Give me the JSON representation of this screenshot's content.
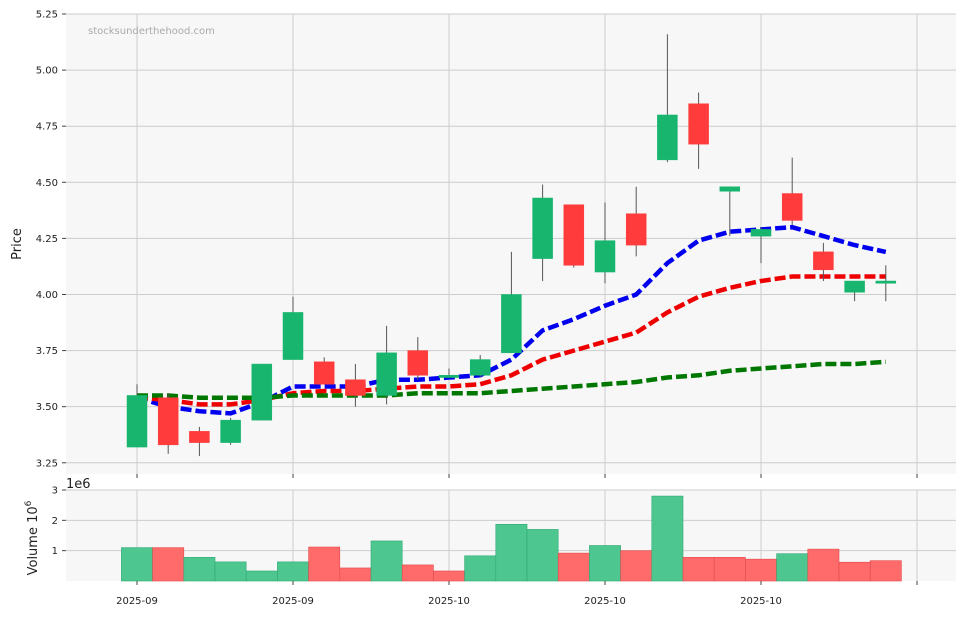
{
  "watermark": "stocksunderthehood.com",
  "colors": {
    "up": "#18b56e",
    "down": "#ff3b3b",
    "ma_fast": "#0000ee",
    "ma_mid": "#ee0000",
    "ma_slow": "#007700",
    "panel_bg": "#f7f7f7",
    "grid": "#cccccc",
    "wick": "#555555"
  },
  "chart_data": [
    {
      "type": "candlestick",
      "ylabel": "Price",
      "ylim": [
        3.2,
        5.25
      ],
      "yticks": [
        3.25,
        3.5,
        3.75,
        4.0,
        4.25,
        4.5,
        4.75,
        5.0,
        5.25
      ],
      "grid": true,
      "candles": [
        {
          "o": 3.32,
          "h": 3.6,
          "l": 3.32,
          "c": 3.55
        },
        {
          "o": 3.54,
          "h": 3.56,
          "l": 3.29,
          "c": 3.33
        },
        {
          "o": 3.39,
          "h": 3.41,
          "l": 3.28,
          "c": 3.34
        },
        {
          "o": 3.34,
          "h": 3.45,
          "l": 3.33,
          "c": 3.44
        },
        {
          "o": 3.44,
          "h": 3.69,
          "l": 3.44,
          "c": 3.69
        },
        {
          "o": 3.71,
          "h": 3.99,
          "l": 3.71,
          "c": 3.92
        },
        {
          "o": 3.7,
          "h": 3.72,
          "l": 3.6,
          "c": 3.6
        },
        {
          "o": 3.62,
          "h": 3.69,
          "l": 3.5,
          "c": 3.55
        },
        {
          "o": 3.55,
          "h": 3.86,
          "l": 3.51,
          "c": 3.74
        },
        {
          "o": 3.75,
          "h": 3.81,
          "l": 3.62,
          "c": 3.64
        },
        {
          "o": 3.63,
          "h": 3.67,
          "l": 3.63,
          "c": 3.64
        },
        {
          "o": 3.64,
          "h": 3.73,
          "l": 3.63,
          "c": 3.71
        },
        {
          "o": 3.74,
          "h": 4.19,
          "l": 3.74,
          "c": 4.0
        },
        {
          "o": 4.16,
          "h": 4.49,
          "l": 4.06,
          "c": 4.43
        },
        {
          "o": 4.4,
          "h": 4.4,
          "l": 4.12,
          "c": 4.13
        },
        {
          "o": 4.1,
          "h": 4.41,
          "l": 4.05,
          "c": 4.24
        },
        {
          "o": 4.36,
          "h": 4.48,
          "l": 4.17,
          "c": 4.22
        },
        {
          "o": 4.6,
          "h": 5.16,
          "l": 4.59,
          "c": 4.8
        },
        {
          "o": 4.85,
          "h": 4.9,
          "l": 4.56,
          "c": 4.67
        },
        {
          "o": 4.46,
          "h": 4.48,
          "l": 4.26,
          "c": 4.48
        },
        {
          "o": 4.26,
          "h": 4.3,
          "l": 4.14,
          "c": 4.29
        },
        {
          "o": 4.45,
          "h": 4.61,
          "l": 4.31,
          "c": 4.33
        },
        {
          "o": 4.19,
          "h": 4.23,
          "l": 4.06,
          "c": 4.11
        },
        {
          "o": 4.01,
          "h": 4.06,
          "l": 3.97,
          "c": 4.06
        },
        {
          "o": 4.05,
          "h": 4.13,
          "l": 3.97,
          "c": 4.06
        }
      ],
      "moving_averages": [
        {
          "style": "dashed",
          "color_key": "ma_fast",
          "values": [
            3.54,
            3.5,
            3.48,
            3.47,
            3.52,
            3.59,
            3.59,
            3.59,
            3.62,
            3.62,
            3.63,
            3.64,
            3.71,
            3.84,
            3.89,
            3.95,
            4.0,
            4.14,
            4.24,
            4.28,
            4.29,
            4.3,
            4.26,
            4.22,
            4.19
          ]
        },
        {
          "style": "dashed",
          "color_key": "ma_mid",
          "values": [
            3.54,
            3.53,
            3.51,
            3.51,
            3.53,
            3.56,
            3.57,
            3.57,
            3.58,
            3.59,
            3.59,
            3.6,
            3.64,
            3.71,
            3.75,
            3.79,
            3.83,
            3.92,
            3.99,
            4.03,
            4.06,
            4.08,
            4.08,
            4.08,
            4.08
          ]
        },
        {
          "style": "dashed",
          "color_key": "ma_slow",
          "values": [
            3.55,
            3.55,
            3.54,
            3.54,
            3.54,
            3.55,
            3.55,
            3.55,
            3.55,
            3.56,
            3.56,
            3.56,
            3.57,
            3.58,
            3.59,
            3.6,
            3.61,
            3.63,
            3.64,
            3.66,
            3.67,
            3.68,
            3.69,
            3.69,
            3.7
          ]
        }
      ]
    },
    {
      "type": "bar",
      "ylabel": "Volume",
      "ylabel_unit": "10",
      "ylabel_exp": "6",
      "offset_label": "1e6",
      "ylim": [
        0,
        3.0
      ],
      "yticks": [
        1,
        2,
        3
      ],
      "grid": true,
      "values": [
        1.1,
        1.1,
        0.78,
        0.63,
        0.33,
        0.63,
        1.12,
        0.43,
        1.32,
        0.53,
        0.33,
        0.83,
        1.87,
        1.7,
        0.92,
        1.17,
        1.0,
        2.8,
        0.78,
        0.78,
        0.72,
        0.9,
        1.05,
        0.62,
        0.67
      ],
      "directions": [
        "up",
        "down",
        "up",
        "up",
        "up",
        "up",
        "down",
        "down",
        "up",
        "down",
        "down",
        "up",
        "up",
        "up",
        "down",
        "up",
        "down",
        "up",
        "down",
        "down",
        "down",
        "up",
        "down",
        "down",
        "down"
      ]
    }
  ],
  "x_axis": {
    "ticks": [
      {
        "label": "2025-09",
        "index": 0
      },
      {
        "label": "2025-09",
        "index": 5
      },
      {
        "label": "2025-10",
        "index": 10
      },
      {
        "label": "2025-10",
        "index": 15
      },
      {
        "label": "2025-10",
        "index": 20
      },
      {
        "label": "",
        "index": 25
      }
    ]
  }
}
